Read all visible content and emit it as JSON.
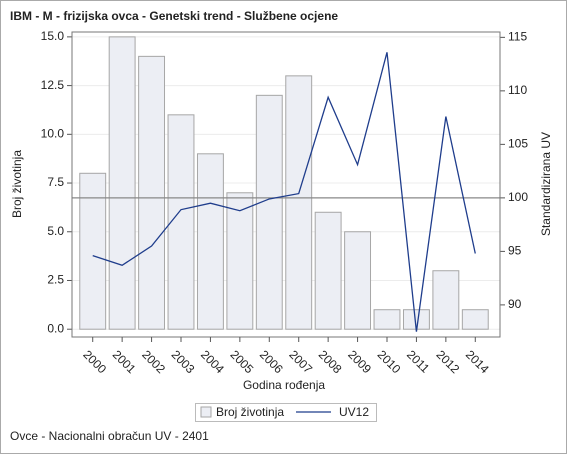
{
  "chart_data": {
    "type": "bar_line",
    "title": "IBM - M - frizijska ovca - Genetski trend - Službene ocjene",
    "x_label": "Godina rođenja",
    "y_label": "Broj životinja",
    "y2_label": "Standardizirana UV",
    "footnote": "Ovce - Nacionalni obračun UV - 2401",
    "categories": [
      "2000",
      "2001",
      "2002",
      "2003",
      "2004",
      "2005",
      "2006",
      "2007",
      "2008",
      "2009",
      "2010",
      "2011",
      "2012",
      "2014"
    ],
    "series": [
      {
        "name": "Broj životinja",
        "type": "bar",
        "color": "#eceef4",
        "values": [
          8,
          15,
          14,
          11,
          9,
          7,
          12,
          13,
          6,
          5,
          1,
          1,
          3,
          1
        ]
      },
      {
        "name": "UV12",
        "type": "line",
        "axis": "y2",
        "color": "#1f3d8c",
        "values": [
          94.6,
          93.7,
          95.5,
          98.9,
          99.5,
          98.8,
          99.9,
          100.4,
          109.4,
          103.1,
          113.6,
          87.5,
          107.6,
          94.8
        ]
      }
    ],
    "ylim": [
      -0.4,
      15.25
    ],
    "yticks": [
      {
        "value": 0,
        "label": "0.0"
      },
      {
        "value": 2.5,
        "label": "2.5"
      },
      {
        "value": 5,
        "label": "5.0"
      },
      {
        "value": 7.5,
        "label": "7.5"
      },
      {
        "value": 10,
        "label": "10.0"
      },
      {
        "value": 12.5,
        "label": "12.5"
      },
      {
        "value": 15,
        "label": "15.0"
      }
    ],
    "y2lim": [
      87,
      115.5
    ],
    "y2ticks": [
      90,
      95,
      100,
      105,
      110,
      115
    ],
    "reference_line": {
      "axis": "y2",
      "value": 100
    },
    "grid": true
  }
}
